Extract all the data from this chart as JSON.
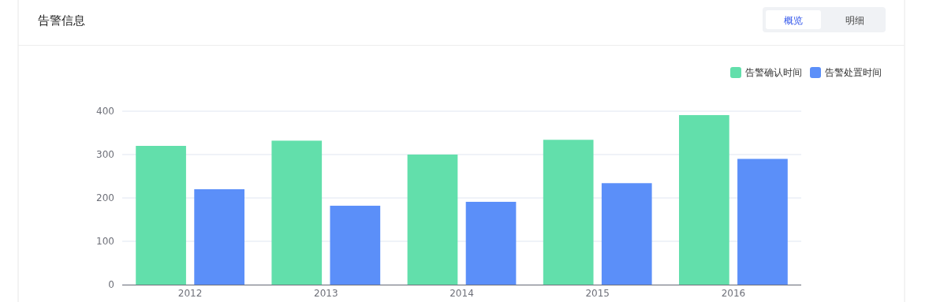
{
  "chart_data": {
    "type": "bar",
    "title": "告警信息",
    "annotations": [
      "概览",
      "明细"
    ],
    "categories": [
      "2012",
      "2013",
      "2014",
      "2015",
      "2016"
    ],
    "series": [
      {
        "name": "告警确认时间",
        "color": "#62dfab",
        "values": [
          320,
          332,
          300,
          334,
          391
        ]
      },
      {
        "name": "告警处置时间",
        "color": "#5b8ff9",
        "values": [
          220,
          182,
          191,
          234,
          290
        ]
      }
    ],
    "ylim": [
      0,
      400
    ],
    "yticks": [
      0,
      100,
      200,
      300,
      400
    ],
    "grid": "y",
    "legend": "top right"
  }
}
